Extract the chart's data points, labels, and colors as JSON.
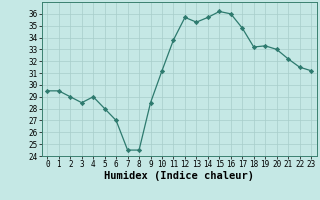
{
  "x": [
    0,
    1,
    2,
    3,
    4,
    5,
    6,
    7,
    8,
    9,
    10,
    11,
    12,
    13,
    14,
    15,
    16,
    17,
    18,
    19,
    20,
    21,
    22,
    23
  ],
  "y": [
    29.5,
    29.5,
    29.0,
    28.5,
    29.0,
    28.0,
    27.0,
    24.5,
    24.5,
    28.5,
    31.2,
    33.8,
    35.7,
    35.3,
    35.7,
    36.2,
    36.0,
    34.8,
    33.2,
    33.3,
    33.0,
    32.2,
    31.5,
    31.2
  ],
  "xlabel": "Humidex (Indice chaleur)",
  "line_color": "#2d7a6e",
  "marker": "D",
  "marker_size": 2.2,
  "bg_color": "#c5e8e5",
  "grid_color": "#a8ceca",
  "ylim": [
    24,
    37
  ],
  "xlim": [
    -0.5,
    23.5
  ],
  "yticks": [
    24,
    25,
    26,
    27,
    28,
    29,
    30,
    31,
    32,
    33,
    34,
    35,
    36
  ],
  "xticks": [
    0,
    1,
    2,
    3,
    4,
    5,
    6,
    7,
    8,
    9,
    10,
    11,
    12,
    13,
    14,
    15,
    16,
    17,
    18,
    19,
    20,
    21,
    22,
    23
  ],
  "tick_fontsize": 5.5,
  "xlabel_fontsize": 7.5
}
